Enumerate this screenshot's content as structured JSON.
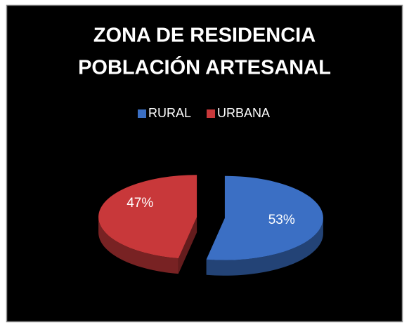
{
  "chart_data": {
    "type": "pie",
    "title": [
      "ZONA DE RESIDENCIA",
      "POBLACIÓN ARTESANAL"
    ],
    "categories": [
      "RURAL",
      "URBANA"
    ],
    "values": [
      53,
      47
    ],
    "value_labels": [
      "53%",
      "47%"
    ],
    "colors": [
      "#3b6fc4",
      "#c8383a"
    ],
    "legend": "top"
  }
}
